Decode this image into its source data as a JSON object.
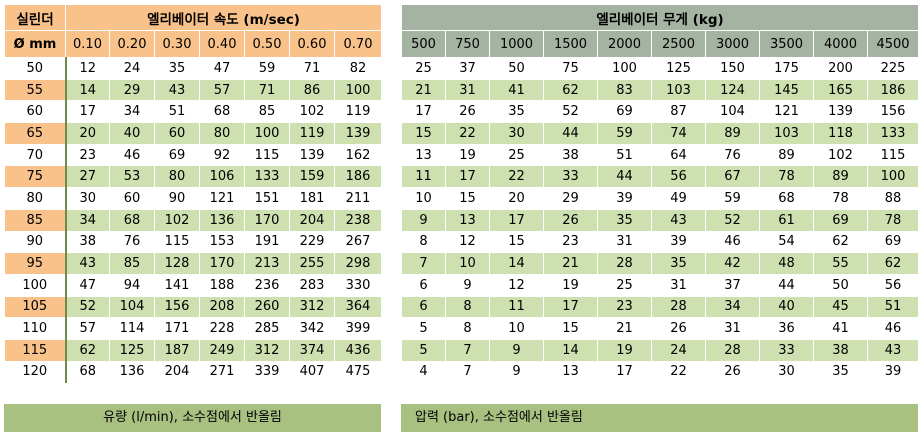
{
  "left": {
    "cyl_header_top": "실린더",
    "cyl_header_bottom": "Ø mm",
    "speed_title": "엘리베이터 속도 (m/sec)",
    "speeds": [
      "0.10",
      "0.20",
      "0.30",
      "0.40",
      "0.50",
      "0.60",
      "0.70"
    ],
    "rows": [
      [
        "50",
        "12",
        "24",
        "35",
        "47",
        "59",
        "71",
        "82"
      ],
      [
        "55",
        "14",
        "29",
        "43",
        "57",
        "71",
        "86",
        "100"
      ],
      [
        "60",
        "17",
        "34",
        "51",
        "68",
        "85",
        "102",
        "119"
      ],
      [
        "65",
        "20",
        "40",
        "60",
        "80",
        "100",
        "119",
        "139"
      ],
      [
        "70",
        "23",
        "46",
        "69",
        "92",
        "115",
        "139",
        "162"
      ],
      [
        "75",
        "27",
        "53",
        "80",
        "106",
        "133",
        "159",
        "186"
      ],
      [
        "80",
        "30",
        "60",
        "90",
        "121",
        "151",
        "181",
        "211"
      ],
      [
        "85",
        "34",
        "68",
        "102",
        "136",
        "170",
        "204",
        "238"
      ],
      [
        "90",
        "38",
        "76",
        "115",
        "153",
        "191",
        "229",
        "267"
      ],
      [
        "95",
        "43",
        "85",
        "128",
        "170",
        "213",
        "255",
        "298"
      ],
      [
        "100",
        "47",
        "94",
        "141",
        "188",
        "236",
        "283",
        "330"
      ],
      [
        "105",
        "52",
        "104",
        "156",
        "208",
        "260",
        "312",
        "364"
      ],
      [
        "110",
        "57",
        "114",
        "171",
        "228",
        "285",
        "342",
        "399"
      ],
      [
        "115",
        "62",
        "125",
        "187",
        "249",
        "312",
        "374",
        "436"
      ],
      [
        "120",
        "68",
        "136",
        "204",
        "271",
        "339",
        "407",
        "475"
      ]
    ],
    "footer": "유량 (l/min), 소수점에서 반올림"
  },
  "right": {
    "weight_title": "엘리베이터 무게 (kg)",
    "weights": [
      "500",
      "750",
      "1000",
      "1500",
      "2000",
      "2500",
      "3000",
      "3500",
      "4000",
      "4500"
    ],
    "rows": [
      [
        "25",
        "37",
        "50",
        "75",
        "100",
        "125",
        "150",
        "175",
        "200",
        "225"
      ],
      [
        "21",
        "31",
        "41",
        "62",
        "83",
        "103",
        "124",
        "145",
        "165",
        "186"
      ],
      [
        "17",
        "26",
        "35",
        "52",
        "69",
        "87",
        "104",
        "121",
        "139",
        "156"
      ],
      [
        "15",
        "22",
        "30",
        "44",
        "59",
        "74",
        "89",
        "103",
        "118",
        "133"
      ],
      [
        "13",
        "19",
        "25",
        "38",
        "51",
        "64",
        "76",
        "89",
        "102",
        "115"
      ],
      [
        "11",
        "17",
        "22",
        "33",
        "44",
        "56",
        "67",
        "78",
        "89",
        "100"
      ],
      [
        "10",
        "15",
        "20",
        "29",
        "39",
        "49",
        "59",
        "68",
        "78",
        "88"
      ],
      [
        "9",
        "13",
        "17",
        "26",
        "35",
        "43",
        "52",
        "61",
        "69",
        "78"
      ],
      [
        "8",
        "12",
        "15",
        "23",
        "31",
        "39",
        "46",
        "54",
        "62",
        "69"
      ],
      [
        "7",
        "10",
        "14",
        "21",
        "28",
        "35",
        "42",
        "48",
        "55",
        "62"
      ],
      [
        "6",
        "9",
        "12",
        "19",
        "25",
        "31",
        "37",
        "44",
        "50",
        "56"
      ],
      [
        "6",
        "8",
        "11",
        "17",
        "23",
        "28",
        "34",
        "40",
        "45",
        "51"
      ],
      [
        "5",
        "8",
        "10",
        "15",
        "21",
        "26",
        "31",
        "36",
        "41",
        "46"
      ],
      [
        "5",
        "7",
        "9",
        "14",
        "19",
        "24",
        "28",
        "33",
        "38",
        "43"
      ],
      [
        "4",
        "7",
        "9",
        "13",
        "17",
        "22",
        "26",
        "30",
        "35",
        "39"
      ]
    ],
    "footer": "압력 (bar), 소수점에서 반올림"
  }
}
